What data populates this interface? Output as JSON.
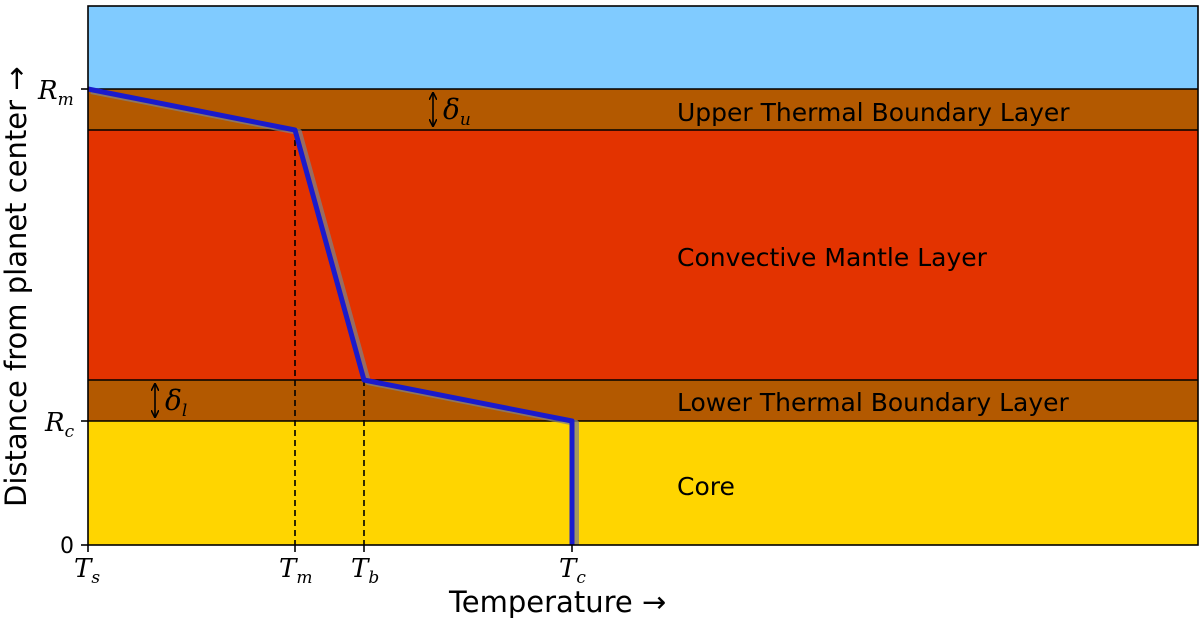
{
  "diagram": {
    "colors": {
      "atmosphere": "#80cbff",
      "boundary_layer": "#b35900",
      "convective_mantle": "#e33300",
      "core": "#ffd500",
      "profile_line": "#1a1acc",
      "profile_shadow": "#808080",
      "outline": "#000000"
    },
    "layers": {
      "upper_boundary": "Upper Thermal Boundary Layer",
      "mantle": "Convective Mantle Layer",
      "lower_boundary": "Lower Thermal Boundary Layer",
      "core": "Core"
    },
    "thickness_labels": {
      "upper_symbol": "δ",
      "upper_sub": "u",
      "lower_symbol": "δ",
      "lower_sub": "l"
    },
    "y_axis": {
      "title": "Distance from planet center →",
      "ticks": [
        {
          "main": "R",
          "sub": "m"
        },
        {
          "main": "R",
          "sub": "c"
        },
        {
          "main": "0",
          "sub": ""
        }
      ]
    },
    "x_axis": {
      "title": "Temperature →",
      "ticks": [
        {
          "main": "T",
          "sub": "s"
        },
        {
          "main": "T",
          "sub": "m"
        },
        {
          "main": "T",
          "sub": "b"
        },
        {
          "main": "T",
          "sub": "c"
        }
      ]
    },
    "icons": {
      "thickness_arrow": "double-headed-vertical-arrow"
    }
  }
}
